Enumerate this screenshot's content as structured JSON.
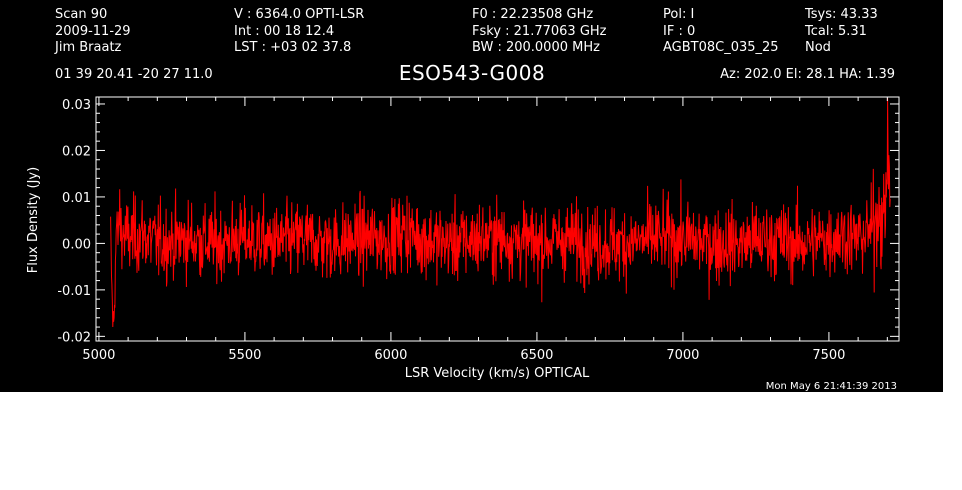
{
  "header": {
    "col1": [
      "Scan        90",
      "2009-11-29",
      "Jim Braatz"
    ],
    "col2": [
      "V   :     6364.0 OPTI-LSR",
      "Int  :  00 18 12.4",
      "LST : +03 02 37.8"
    ],
    "col3": [
      "F0   :  22.23508 GHz",
      "Fsky :  21.77063 GHz",
      "BW   : 200.0000 MHz"
    ],
    "col4": [
      "Pol:     I",
      "IF :     0",
      "AGBT08C_035_25"
    ],
    "col5": [
      "Tsys:    43.33",
      "Tcal:       5.31",
      "Nod"
    ],
    "coords": "01 39 20.41   -20 27 11.0",
    "source": "ESO543-G008",
    "azel": "Az: 202.0   El:  28.1   HA:  1.39"
  },
  "timestamp": "Mon May  6 21:41:39 2013",
  "colors": {
    "background": "#000000",
    "trace": "#ff0000",
    "axes": "#ffffff"
  },
  "chart_data": {
    "type": "line",
    "xlabel": "LSR Velocity (km/s) OPTICAL",
    "ylabel": "Flux Density (Jy)",
    "xlim": [
      4990,
      7740
    ],
    "ylim": [
      -0.021,
      0.0315
    ],
    "x_ticks": [
      5000,
      5500,
      6000,
      6500,
      7000,
      7500
    ],
    "y_ticks": [
      -0.02,
      -0.01,
      0.0,
      0.01,
      0.02,
      0.03
    ],
    "x_tick_labels": [
      "5000",
      "5500",
      "6000",
      "6500",
      "7000",
      "7500"
    ],
    "y_tick_labels": [
      "-0.02",
      "-0.01",
      "0.00",
      "0.01",
      "0.02",
      "0.03"
    ],
    "series": [
      {
        "color": "#ff0000",
        "x": [
          5040,
          5045,
          5050,
          5055,
          5060,
          5065,
          5070,
          5080,
          5100,
          5150,
          5200,
          5300,
          5400,
          5500,
          5600,
          5700,
          5800,
          5900,
          6000,
          6050,
          6100,
          6200,
          6300,
          6400,
          6500,
          6600,
          6700,
          6800,
          6900,
          7000,
          7100,
          7200,
          7300,
          7400,
          7500,
          7550,
          7600,
          7650,
          7670,
          7690,
          7700,
          7710
        ],
        "y": [
          0.002,
          -0.012,
          -0.019,
          -0.008,
          0.004,
          0.001,
          0.006,
          0.002,
          0.001,
          0.002,
          0.0,
          0.001,
          0.0,
          0.001,
          0.0,
          0.001,
          0.0,
          0.001,
          0.001,
          0.003,
          0.001,
          0.0,
          0.001,
          0.001,
          0.0,
          0.001,
          0.0,
          0.0,
          0.001,
          0.001,
          0.0,
          0.0,
          0.001,
          0.0,
          0.001,
          0.002,
          0.001,
          0.003,
          0.008,
          0.004,
          0.02,
          0.012
        ],
        "noise_rms_jy": 0.0045
      }
    ]
  }
}
